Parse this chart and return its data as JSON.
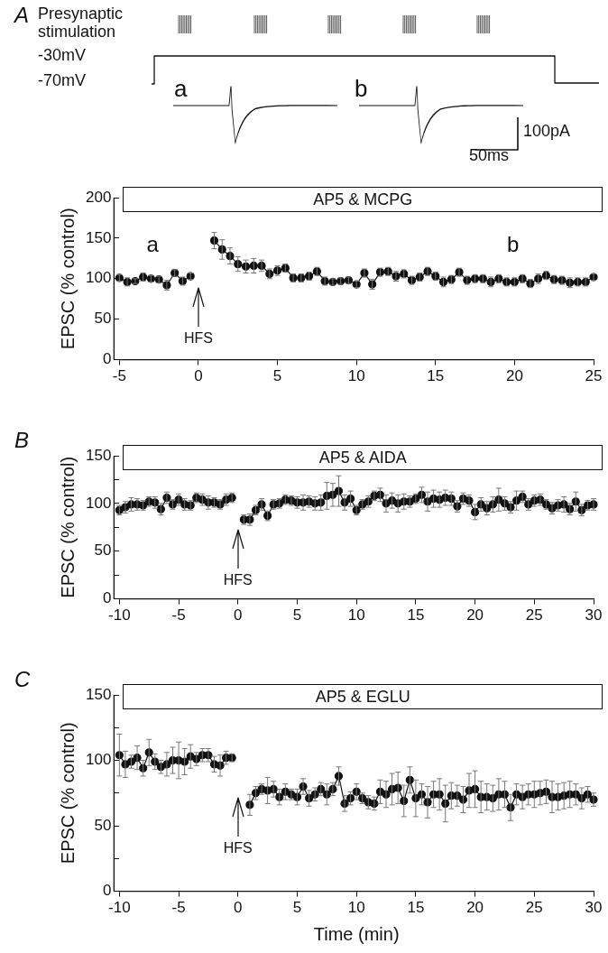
{
  "chart_data": [
    {
      "type": "other",
      "title": "A",
      "annotations": [
        "Presynaptic stimulation",
        "-30mV",
        "-70mV",
        "a",
        "b",
        "100pA",
        "50ms"
      ]
    },
    {
      "type": "line",
      "ylabel": "EPSC (% control)",
      "xlim": [
        -5,
        25
      ],
      "xticks": [
        -5,
        0,
        5,
        10,
        15,
        20,
        25
      ],
      "ylim": [
        0,
        200
      ],
      "yticks": [
        0,
        50,
        100,
        150,
        200
      ],
      "marker": "circle",
      "line_style": "solid",
      "annotations": [
        "AP5 & MCPG",
        "a",
        "b",
        "HFS"
      ],
      "series": [
        {
          "color": "#111111",
          "x": [
            -5,
            -4.5,
            -4,
            -3.5,
            -3,
            -2.5,
            -2,
            -1.5,
            -1,
            -0.5
          ],
          "values": [
            101,
            96,
            97,
            102,
            100,
            99,
            92,
            107,
            97,
            103
          ],
          "errors": [
            4,
            5,
            3,
            5,
            4,
            4,
            6,
            4,
            5,
            4
          ]
        },
        {
          "color": "#111111",
          "x": [
            1,
            1.5,
            2,
            2.5,
            3,
            3.5,
            4,
            4.5,
            5,
            5.5,
            6,
            6.5,
            7,
            7.5,
            8,
            8.5,
            9,
            9.5,
            10,
            10.5,
            11,
            11.5,
            12,
            12.5,
            13,
            13.5,
            14,
            14.5,
            15,
            15.5,
            16,
            16.5,
            17,
            17.5,
            18,
            18.5,
            19,
            19.5,
            20,
            20.5,
            21,
            21.5,
            22,
            22.5,
            23,
            23.5,
            24,
            24.5,
            25
          ],
          "values": [
            147,
            136,
            128,
            118,
            115,
            116,
            116,
            106,
            110,
            113,
            101,
            101,
            103,
            109,
            97,
            96,
            97,
            98,
            93,
            107,
            93,
            108,
            109,
            103,
            106,
            98,
            102,
            109,
            103,
            96,
            99,
            108,
            98,
            100,
            100,
            96,
            100,
            96,
            96,
            100,
            94,
            100,
            104,
            99,
            98,
            95,
            96,
            96,
            102
          ],
          "errors": [
            10,
            12,
            10,
            9,
            8,
            9,
            7,
            6,
            6,
            5,
            5,
            5,
            5,
            5,
            5,
            4,
            4,
            4,
            4,
            5,
            6,
            5,
            5,
            6,
            5,
            5,
            5,
            5,
            5,
            6,
            5,
            5,
            5,
            5,
            5,
            6,
            5,
            5,
            5,
            5,
            5,
            6,
            5,
            5,
            5,
            6,
            5,
            5,
            4
          ]
        }
      ]
    },
    {
      "type": "line",
      "title": "B",
      "ylabel": "EPSC (% control)",
      "xlim": [
        -10,
        30
      ],
      "xticks": [
        -10,
        -5,
        0,
        5,
        10,
        15,
        20,
        25,
        30
      ],
      "ylim": [
        0,
        150
      ],
      "yticks": [
        0,
        {
          "value": 25,
          "label": null
        },
        50,
        {
          "value": 75,
          "label": null
        },
        100,
        {
          "value": 125,
          "label": null
        },
        150
      ],
      "marker": "circle",
      "line_style": "solid",
      "annotations": [
        "AP5 & AIDA",
        "HFS"
      ],
      "series": [
        {
          "color": "#111111",
          "x": [
            -10,
            -9.5,
            -9,
            -8.5,
            -8,
            -7.5,
            -7,
            -6.5,
            -6,
            -5.5,
            -5,
            -4.5,
            -4,
            -3.5,
            -3,
            -2.5,
            -2,
            -1.5,
            -1,
            -0.5
          ],
          "values": [
            93,
            96,
            99,
            99,
            98,
            102,
            101,
            94,
            106,
            99,
            104,
            99,
            98,
            106,
            104,
            101,
            101,
            99,
            104,
            106
          ],
          "errors": [
            5,
            6,
            7,
            6,
            5,
            5,
            6,
            6,
            6,
            5,
            6,
            6,
            5,
            5,
            6,
            7,
            5,
            5,
            6,
            5
          ]
        },
        {
          "color": "#111111",
          "x": [
            0.5,
            1,
            1.5,
            2,
            2.5,
            3,
            3.5,
            4,
            4.5,
            5,
            5.5,
            6,
            6.5,
            7,
            7.5,
            8,
            8.5,
            9,
            9.5,
            10,
            10.5,
            11,
            11.5,
            12,
            12.5,
            13,
            13.5,
            14,
            14.5,
            15,
            15.5,
            16,
            16.5,
            17,
            17.5,
            18,
            18.5,
            19,
            19.5,
            20,
            20.5,
            21,
            21.5,
            22,
            22.5,
            23,
            23.5,
            24,
            24.5,
            25,
            25.5,
            26,
            26.5,
            27,
            27.5,
            28,
            28.5,
            29,
            29.5,
            30
          ],
          "values": [
            83,
            83,
            93,
            99,
            87,
            99,
            100,
            104,
            103,
            101,
            101,
            102,
            100,
            101,
            108,
            109,
            113,
            101,
            105,
            93,
            99,
            102,
            108,
            109,
            100,
            103,
            100,
            102,
            102,
            105,
            109,
            102,
            105,
            104,
            106,
            105,
            97,
            105,
            103,
            91,
            99,
            95,
            99,
            104,
            100,
            96,
            103,
            107,
            99,
            103,
            104,
            99,
            95,
            98,
            99,
            94,
            102,
            93,
            98,
            99
          ],
          "errors": [
            5,
            6,
            5,
            6,
            5,
            5,
            5,
            5,
            5,
            6,
            8,
            6,
            7,
            8,
            14,
            12,
            16,
            8,
            8,
            5,
            5,
            6,
            5,
            7,
            9,
            8,
            9,
            8,
            6,
            5,
            8,
            10,
            9,
            8,
            8,
            7,
            6,
            6,
            6,
            8,
            7,
            7,
            8,
            12,
            7,
            6,
            10,
            6,
            6,
            6,
            6,
            5,
            6,
            6,
            8,
            6,
            10,
            6,
            5,
            6
          ]
        }
      ]
    },
    {
      "type": "line",
      "title": "C",
      "xlabel": "Time (min)",
      "ylabel": "EPSC (% control)",
      "xlim": [
        -10,
        30
      ],
      "xticks": [
        -10,
        -5,
        0,
        5,
        10,
        15,
        20,
        25,
        30
      ],
      "ylim": [
        0,
        150
      ],
      "yticks": [
        0,
        {
          "value": 25,
          "label": null
        },
        50,
        {
          "value": 75,
          "label": null
        },
        100,
        {
          "value": 125,
          "label": null
        },
        150
      ],
      "marker": "circle",
      "line_style": "solid",
      "annotations": [
        "AP5 & EGLU",
        "HFS"
      ],
      "series": [
        {
          "color": "#111111",
          "x": [
            -10,
            -9.5,
            -9,
            -8.5,
            -8,
            -7.5,
            -7,
            -6.5,
            -6,
            -5.5,
            -5,
            -4.5,
            -4,
            -3.5,
            -3,
            -2.5,
            -2,
            -1.5,
            -1,
            -0.5
          ],
          "values": [
            104,
            97,
            99,
            102,
            94,
            106,
            99,
            95,
            97,
            100,
            100,
            99,
            103,
            101,
            104,
            104,
            97,
            96,
            102,
            102
          ],
          "errors": [
            16,
            10,
            5,
            9,
            6,
            10,
            6,
            5,
            9,
            10,
            14,
            10,
            9,
            5,
            5,
            5,
            6,
            8,
            5,
            3
          ]
        },
        {
          "color": "#111111",
          "x": [
            1,
            1.5,
            2,
            2.5,
            3,
            3.5,
            4,
            4.5,
            5,
            5.5,
            6,
            6.5,
            7,
            7.5,
            8,
            8.5,
            9,
            9.5,
            10,
            10.5,
            11,
            11.5,
            12,
            12.5,
            13,
            13.5,
            14,
            14.5,
            15,
            15.5,
            16,
            16.5,
            17,
            17.5,
            18,
            18.5,
            19,
            19.5,
            20,
            20.5,
            21,
            21.5,
            22,
            22.5,
            23,
            23.5,
            24,
            24.5,
            25,
            25.5,
            26,
            26.5,
            27,
            27.5,
            28,
            28.5,
            29,
            29.5,
            30
          ],
          "values": [
            66,
            75,
            78,
            77,
            78,
            72,
            76,
            74,
            72,
            80,
            71,
            74,
            78,
            74,
            78,
            88,
            67,
            71,
            76,
            71,
            68,
            67,
            76,
            74,
            78,
            79,
            69,
            85,
            71,
            74,
            68,
            74,
            74,
            67,
            73,
            73,
            70,
            77,
            78,
            72,
            72,
            71,
            74,
            74,
            64,
            74,
            72,
            74,
            74,
            75,
            76,
            72,
            72,
            73,
            74,
            74,
            71,
            74,
            70
          ],
          "errors": [
            8,
            5,
            4,
            10,
            6,
            6,
            6,
            4,
            6,
            6,
            6,
            5,
            5,
            8,
            5,
            7,
            6,
            5,
            6,
            4,
            5,
            5,
            9,
            10,
            12,
            12,
            12,
            10,
            14,
            8,
            12,
            10,
            12,
            14,
            10,
            8,
            10,
            13,
            14,
            12,
            10,
            10,
            12,
            10,
            10,
            8,
            9,
            8,
            10,
            9,
            9,
            12,
            10,
            10,
            10,
            8,
            8,
            6,
            5
          ]
        }
      ]
    }
  ]
}
